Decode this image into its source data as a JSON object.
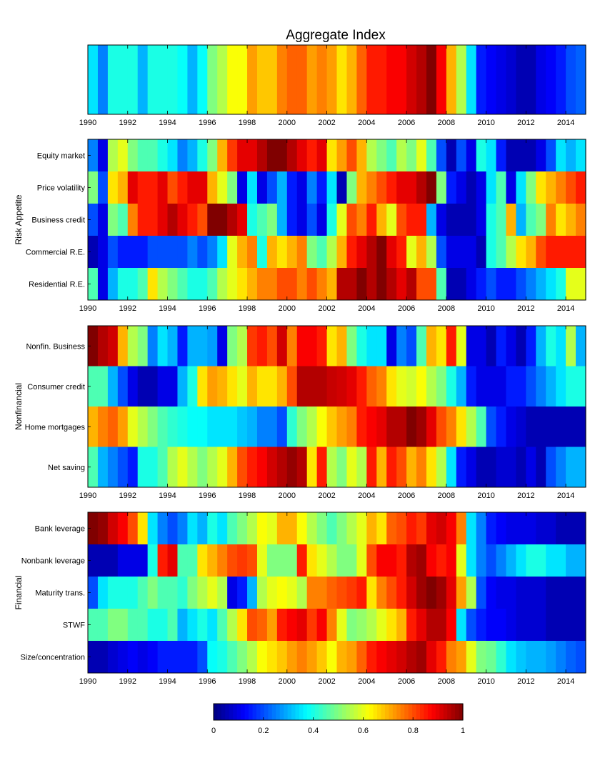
{
  "chart_data": {
    "type": "heatmap",
    "title": "Aggregate Index",
    "colormap": "jet",
    "color_range": [
      0,
      1
    ],
    "x_range": [
      1990,
      2015
    ],
    "x_ticks": [
      "1990",
      "1992",
      "1994",
      "1996",
      "1998",
      "2000",
      "2002",
      "2004",
      "2006",
      "2008",
      "2010",
      "2012",
      "2014"
    ],
    "x": [
      1990,
      1990.5,
      1991,
      1991.5,
      1992,
      1992.5,
      1993,
      1993.5,
      1994,
      1994.5,
      1995,
      1995.5,
      1996,
      1996.5,
      1997,
      1997.5,
      1998,
      1998.5,
      1999,
      1999.5,
      2000,
      2000.5,
      2001,
      2001.5,
      2002,
      2002.5,
      2003,
      2003.5,
      2004,
      2004.5,
      2005,
      2005.5,
      2006,
      2006.5,
      2007,
      2007.5,
      2008,
      2008.5,
      2009,
      2009.5,
      2010,
      2010.5,
      2011,
      2011.5,
      2012,
      2012.5,
      2013,
      2013.5,
      2014,
      2014.5
    ],
    "colorbar": {
      "ticks": [
        "0",
        "0.2",
        "0.4",
        "0.6",
        "0.8",
        "1"
      ]
    },
    "panels": [
      {
        "group": "",
        "rows": [
          {
            "label": "",
            "values": [
              0.35,
              0.25,
              0.4,
              0.4,
              0.4,
              0.3,
              0.4,
              0.4,
              0.4,
              0.38,
              0.3,
              0.38,
              0.5,
              0.55,
              0.62,
              0.62,
              0.72,
              0.68,
              0.68,
              0.75,
              0.78,
              0.78,
              0.72,
              0.75,
              0.72,
              0.65,
              0.7,
              0.78,
              0.85,
              0.85,
              0.88,
              0.88,
              0.92,
              0.95,
              1.0,
              0.88,
              0.7,
              0.55,
              0.35,
              0.15,
              0.12,
              0.1,
              0.08,
              0.05,
              0.05,
              0.1,
              0.12,
              0.15,
              0.2,
              0.22
            ]
          }
        ]
      },
      {
        "group": "Risk Appetite",
        "rows": [
          {
            "label": "Equity market",
            "values": [
              0.25,
              0.1,
              0.55,
              0.6,
              0.5,
              0.45,
              0.45,
              0.4,
              0.35,
              0.25,
              0.3,
              0.4,
              0.5,
              0.7,
              0.82,
              0.9,
              0.9,
              0.95,
              1.0,
              1.0,
              0.95,
              0.9,
              0.85,
              0.9,
              0.65,
              0.72,
              0.8,
              0.7,
              0.55,
              0.5,
              0.45,
              0.55,
              0.5,
              0.6,
              0.45,
              0.2,
              0.05,
              0.2,
              0.1,
              0.4,
              0.35,
              0.15,
              0.05,
              0.05,
              0.05,
              0.1,
              0.2,
              0.35,
              0.3,
              0.35
            ]
          },
          {
            "label": "Price volatility",
            "values": [
              0.5,
              0.2,
              0.65,
              0.7,
              0.9,
              0.85,
              0.85,
              0.9,
              0.8,
              0.85,
              0.9,
              0.9,
              0.7,
              0.6,
              0.5,
              0.1,
              0.35,
              0.1,
              0.2,
              0.3,
              0.15,
              0.1,
              0.25,
              0.15,
              0.35,
              0.05,
              0.5,
              0.7,
              0.75,
              0.8,
              0.85,
              0.9,
              0.9,
              0.95,
              1.0,
              0.5,
              0.15,
              0.1,
              0.05,
              0.1,
              0.35,
              0.45,
              0.1,
              0.35,
              0.5,
              0.65,
              0.7,
              0.75,
              0.8,
              0.85
            ]
          },
          {
            "label": "Business credit",
            "values": [
              0.2,
              0.1,
              0.5,
              0.45,
              0.75,
              0.85,
              0.85,
              0.9,
              0.95,
              0.9,
              0.85,
              0.8,
              1.0,
              1.0,
              0.95,
              0.9,
              0.4,
              0.45,
              0.5,
              0.3,
              0.15,
              0.1,
              0.2,
              0.1,
              0.4,
              0.6,
              0.8,
              0.75,
              0.85,
              0.7,
              0.6,
              0.8,
              0.85,
              0.85,
              0.3,
              0.1,
              0.05,
              0.05,
              0.05,
              0.1,
              0.4,
              0.45,
              0.7,
              0.3,
              0.45,
              0.5,
              0.75,
              0.65,
              0.7,
              0.75
            ]
          },
          {
            "label": "Commercial R.E.",
            "values": [
              0.05,
              0.1,
              0.2,
              0.15,
              0.15,
              0.15,
              0.2,
              0.2,
              0.2,
              0.2,
              0.25,
              0.2,
              0.25,
              0.35,
              0.6,
              0.7,
              0.75,
              0.4,
              0.7,
              0.65,
              0.7,
              0.75,
              0.5,
              0.45,
              0.55,
              0.7,
              0.85,
              0.9,
              0.95,
              1.0,
              0.9,
              0.85,
              0.6,
              0.7,
              0.55,
              0.2,
              0.1,
              0.1,
              0.1,
              0.05,
              0.4,
              0.45,
              0.55,
              0.65,
              0.7,
              0.8,
              0.85,
              0.85,
              0.85,
              0.85
            ]
          },
          {
            "label": "Residential R.E.",
            "values": [
              0.45,
              0.1,
              0.3,
              0.4,
              0.4,
              0.45,
              0.65,
              0.55,
              0.5,
              0.45,
              0.4,
              0.4,
              0.45,
              0.55,
              0.6,
              0.65,
              0.7,
              0.75,
              0.75,
              0.8,
              0.8,
              0.75,
              0.8,
              0.75,
              0.7,
              0.95,
              0.95,
              1.0,
              0.95,
              1.0,
              0.95,
              0.9,
              0.95,
              0.8,
              0.8,
              0.45,
              0.05,
              0.05,
              0.1,
              0.15,
              0.2,
              0.15,
              0.15,
              0.2,
              0.25,
              0.3,
              0.35,
              0.4,
              0.6,
              0.6
            ]
          }
        ]
      },
      {
        "group": "Nonfinancial",
        "rows": [
          {
            "label": "Nonfin. Business",
            "values": [
              1.0,
              0.95,
              0.92,
              0.7,
              0.55,
              0.5,
              0.25,
              0.35,
              0.3,
              0.15,
              0.3,
              0.3,
              0.28,
              0.1,
              0.5,
              0.55,
              0.82,
              0.85,
              0.8,
              0.92,
              0.75,
              0.88,
              0.88,
              0.85,
              0.65,
              0.7,
              0.5,
              0.4,
              0.35,
              0.35,
              0.1,
              0.25,
              0.2,
              0.45,
              0.7,
              0.65,
              0.85,
              0.6,
              0.1,
              0.1,
              0.05,
              0.15,
              0.1,
              0.05,
              0.15,
              0.3,
              0.4,
              0.35,
              0.55,
              0.3
            ]
          },
          {
            "label": "Consumer credit",
            "values": [
              0.45,
              0.45,
              0.3,
              0.2,
              0.1,
              0.05,
              0.05,
              0.1,
              0.1,
              0.3,
              0.4,
              0.65,
              0.72,
              0.7,
              0.65,
              0.6,
              0.7,
              0.65,
              0.65,
              0.7,
              0.8,
              0.95,
              0.95,
              0.95,
              0.93,
              0.92,
              0.9,
              0.85,
              0.78,
              0.75,
              0.65,
              0.6,
              0.58,
              0.62,
              0.55,
              0.5,
              0.4,
              0.3,
              0.15,
              0.1,
              0.1,
              0.1,
              0.15,
              0.15,
              0.2,
              0.25,
              0.3,
              0.35,
              0.4,
              0.4
            ]
          },
          {
            "label": "Home mortgages",
            "values": [
              0.7,
              0.75,
              0.78,
              0.72,
              0.6,
              0.55,
              0.5,
              0.45,
              0.42,
              0.4,
              0.38,
              0.38,
              0.35,
              0.35,
              0.35,
              0.32,
              0.3,
              0.25,
              0.25,
              0.2,
              0.42,
              0.5,
              0.55,
              0.62,
              0.68,
              0.72,
              0.75,
              0.85,
              0.88,
              0.9,
              0.95,
              0.95,
              1.0,
              0.97,
              0.9,
              0.8,
              0.75,
              0.65,
              0.55,
              0.45,
              0.2,
              0.15,
              0.1,
              0.08,
              0.05,
              0.05,
              0.05,
              0.05,
              0.05,
              0.05
            ]
          },
          {
            "label": "Net saving",
            "values": [
              0.45,
              0.3,
              0.25,
              0.2,
              0.15,
              0.4,
              0.4,
              0.45,
              0.55,
              0.6,
              0.55,
              0.5,
              0.55,
              0.6,
              0.7,
              0.8,
              0.85,
              0.88,
              0.92,
              0.95,
              0.98,
              0.95,
              0.65,
              0.85,
              0.55,
              0.5,
              0.6,
              0.55,
              0.85,
              0.7,
              0.85,
              0.8,
              0.7,
              0.75,
              0.65,
              0.55,
              0.35,
              0.15,
              0.1,
              0.05,
              0.05,
              0.08,
              0.08,
              0.05,
              0.1,
              0.05,
              0.2,
              0.25,
              0.3,
              0.3
            ]
          }
        ]
      },
      {
        "group": "Financial",
        "rows": [
          {
            "label": "Bank leverage",
            "values": [
              1.0,
              0.98,
              0.92,
              0.88,
              0.8,
              0.65,
              0.35,
              0.25,
              0.2,
              0.25,
              0.35,
              0.3,
              0.4,
              0.35,
              0.45,
              0.5,
              0.55,
              0.62,
              0.6,
              0.7,
              0.7,
              0.62,
              0.55,
              0.5,
              0.45,
              0.5,
              0.55,
              0.6,
              0.7,
              0.65,
              0.78,
              0.8,
              0.85,
              0.82,
              0.9,
              0.92,
              0.88,
              0.75,
              0.35,
              0.25,
              0.15,
              0.12,
              0.1,
              0.1,
              0.1,
              0.08,
              0.08,
              0.05,
              0.05,
              0.05
            ]
          },
          {
            "label": "Nonbank leverage",
            "values": [
              0.05,
              0.05,
              0.05,
              0.1,
              0.1,
              0.1,
              0.4,
              0.85,
              0.9,
              0.45,
              0.45,
              0.65,
              0.7,
              0.75,
              0.8,
              0.82,
              0.8,
              0.6,
              0.5,
              0.5,
              0.5,
              0.85,
              0.65,
              0.6,
              0.55,
              0.5,
              0.5,
              0.6,
              0.8,
              0.88,
              0.88,
              0.85,
              0.95,
              0.97,
              0.88,
              0.85,
              0.88,
              0.6,
              0.35,
              0.25,
              0.2,
              0.25,
              0.3,
              0.35,
              0.4,
              0.4,
              0.35,
              0.35,
              0.3,
              0.3
            ]
          },
          {
            "label": "Maturity trans.",
            "values": [
              0.2,
              0.35,
              0.4,
              0.4,
              0.4,
              0.45,
              0.5,
              0.45,
              0.45,
              0.42,
              0.5,
              0.55,
              0.6,
              0.55,
              0.1,
              0.15,
              0.3,
              0.55,
              0.6,
              0.62,
              0.6,
              0.55,
              0.75,
              0.75,
              0.78,
              0.8,
              0.82,
              0.85,
              0.65,
              0.75,
              0.8,
              0.85,
              0.92,
              0.97,
              1.0,
              0.97,
              0.9,
              0.72,
              0.55,
              0.2,
              0.12,
              0.1,
              0.1,
              0.08,
              0.08,
              0.08,
              0.05,
              0.05,
              0.05,
              0.05
            ]
          },
          {
            "label": "STWF",
            "values": [
              0.45,
              0.45,
              0.5,
              0.5,
              0.45,
              0.45,
              0.4,
              0.4,
              0.45,
              0.3,
              0.35,
              0.4,
              0.35,
              0.45,
              0.55,
              0.65,
              0.8,
              0.78,
              0.72,
              0.85,
              0.88,
              0.9,
              0.82,
              0.88,
              0.75,
              0.6,
              0.5,
              0.52,
              0.55,
              0.6,
              0.65,
              0.7,
              0.85,
              0.9,
              0.95,
              0.95,
              0.88,
              0.35,
              0.2,
              0.15,
              0.12,
              0.12,
              0.1,
              0.08,
              0.08,
              0.08,
              0.05,
              0.05,
              0.05,
              0.05
            ]
          },
          {
            "label": "Size/concentration",
            "values": [
              0.05,
              0.05,
              0.08,
              0.1,
              0.12,
              0.1,
              0.12,
              0.15,
              0.15,
              0.15,
              0.15,
              0.2,
              0.38,
              0.4,
              0.45,
              0.5,
              0.55,
              0.62,
              0.65,
              0.68,
              0.72,
              0.75,
              0.72,
              0.68,
              0.62,
              0.7,
              0.72,
              0.78,
              0.85,
              0.88,
              0.9,
              0.92,
              0.95,
              0.97,
              0.9,
              0.85,
              0.75,
              0.72,
              0.6,
              0.5,
              0.48,
              0.42,
              0.35,
              0.32,
              0.3,
              0.3,
              0.28,
              0.25,
              0.22,
              0.2
            ]
          }
        ]
      }
    ]
  }
}
